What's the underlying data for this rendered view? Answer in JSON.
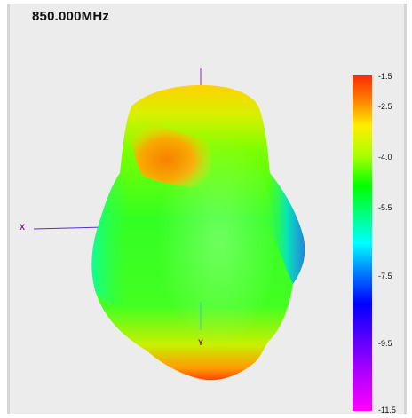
{
  "frequency_label": "850.000MHz",
  "axes": {
    "x_label": "X",
    "y_label": "Y"
  },
  "colorbar": {
    "ticks": [
      "-1.5",
      "-2.5",
      "-4.0",
      "-5.5",
      "-7.5",
      "-9.5",
      "-11.5"
    ],
    "colors": [
      "#ff2a00",
      "#ffee00",
      "#00ff00",
      "#00ffff",
      "#0000ff",
      "#5500ff",
      "#ff00ff"
    ]
  },
  "surface": {
    "dominant_color": "#33ff33",
    "hotspot_color": "#ff8800",
    "accent_color": "#2288ff"
  }
}
